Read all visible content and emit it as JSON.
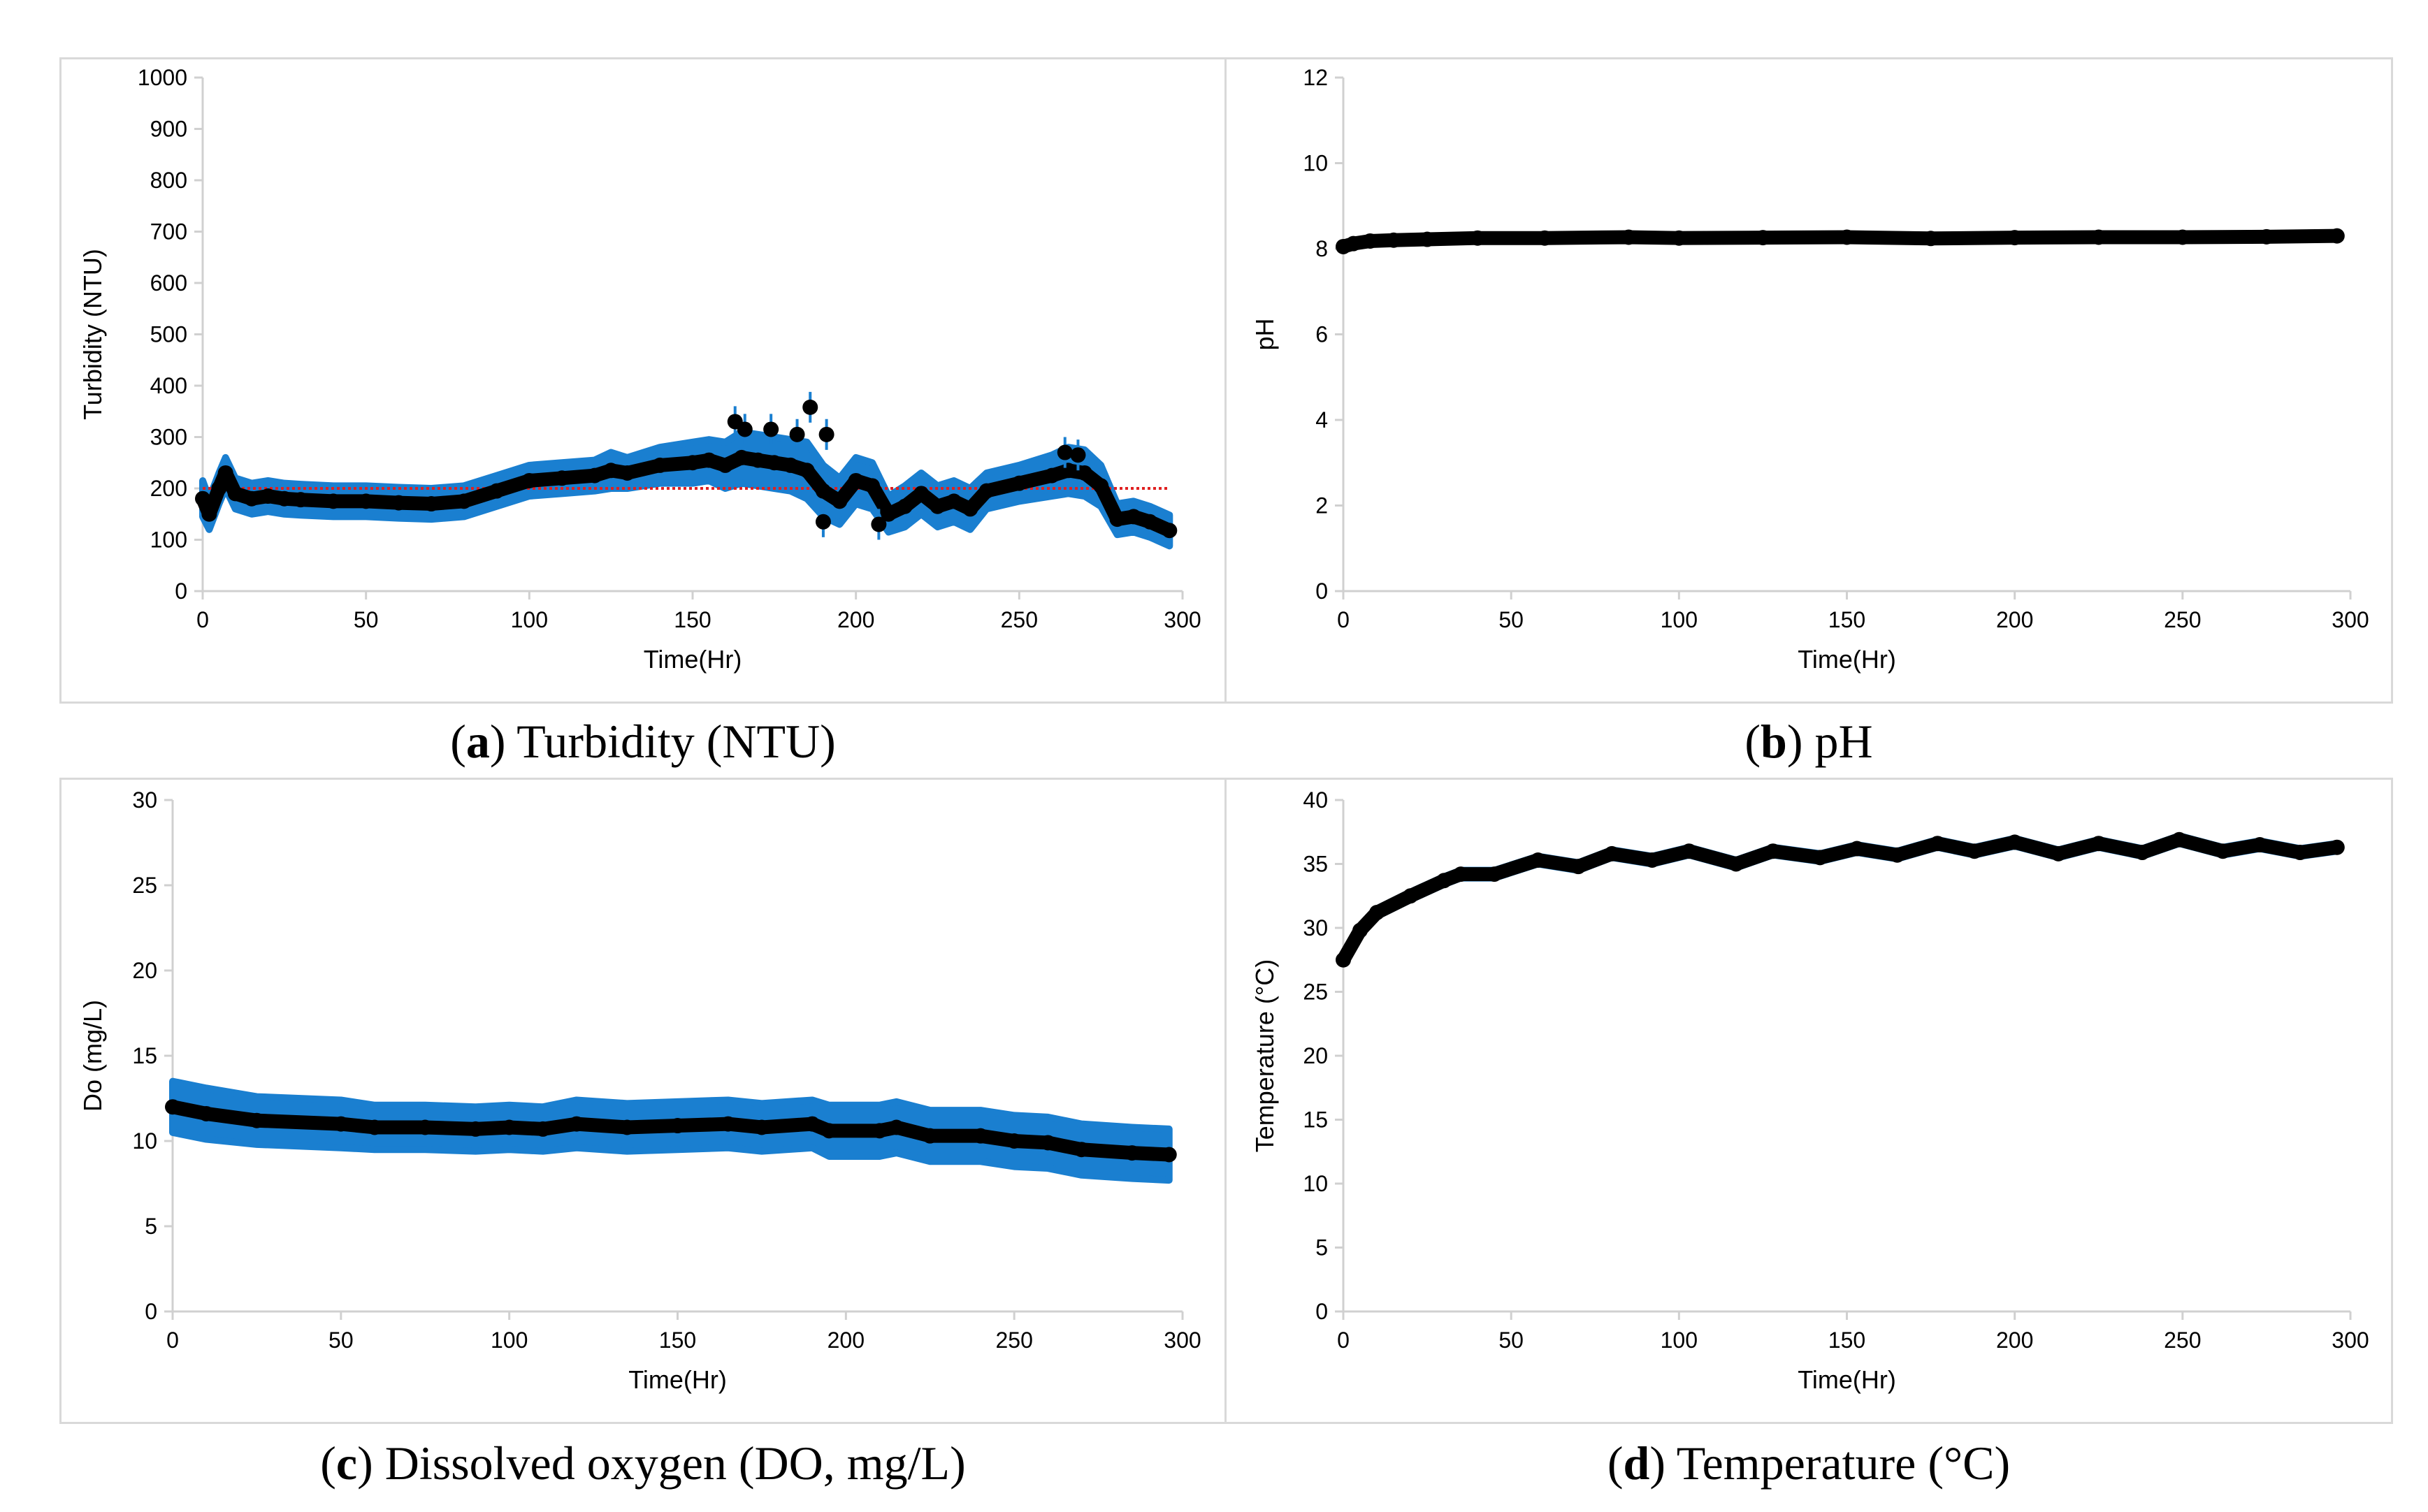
{
  "colors": {
    "mean": "#000000",
    "error": "#1a7fd0",
    "threshold": "#e02020",
    "axis": "#d0d0d0"
  },
  "captions": [
    {
      "letter": "a",
      "text": "Turbidity (NTU)"
    },
    {
      "letter": "b",
      "text": "pH"
    },
    {
      "letter": "c",
      "text": "Dissolved oxygen (DO, mg/L)"
    },
    {
      "letter": "d",
      "text": "Temperature (°C)"
    }
  ],
  "chart_data": [
    {
      "id": "a",
      "type": "line",
      "xlabel": "Time(Hr)",
      "ylabel": "Turbidity (NTU)",
      "xlim": [
        0,
        300
      ],
      "ylim": [
        0,
        1000
      ],
      "xticks": [
        0,
        50,
        100,
        150,
        200,
        250,
        300
      ],
      "yticks": [
        0,
        100,
        200,
        300,
        400,
        500,
        600,
        700,
        800,
        900,
        1000
      ],
      "threshold": 200,
      "grid": false,
      "x": [
        0,
        2,
        5,
        7,
        10,
        15,
        20,
        25,
        30,
        40,
        50,
        60,
        70,
        80,
        90,
        100,
        110,
        120,
        125,
        130,
        140,
        150,
        155,
        160,
        165,
        170,
        175,
        180,
        185,
        190,
        195,
        200,
        205,
        210,
        215,
        220,
        225,
        230,
        235,
        240,
        250,
        260,
        265,
        270,
        275,
        280,
        285,
        290,
        296
      ],
      "y": [
        180,
        150,
        200,
        230,
        190,
        180,
        185,
        180,
        178,
        175,
        175,
        172,
        170,
        175,
        195,
        215,
        220,
        225,
        235,
        230,
        245,
        250,
        255,
        245,
        260,
        255,
        250,
        245,
        235,
        195,
        175,
        215,
        205,
        150,
        165,
        190,
        165,
        175,
        160,
        195,
        210,
        225,
        235,
        230,
        205,
        140,
        145,
        135,
        118
      ],
      "err": [
        35,
        30,
        30,
        30,
        30,
        30,
        30,
        30,
        30,
        30,
        30,
        30,
        30,
        30,
        30,
        30,
        30,
        30,
        35,
        30,
        35,
        40,
        40,
        45,
        50,
        50,
        50,
        50,
        55,
        50,
        45,
        45,
        45,
        35,
        40,
        40,
        40,
        40,
        40,
        35,
        35,
        40,
        45,
        45,
        40,
        30,
        30,
        30,
        30
      ],
      "outliers": [
        [
          163,
          330
        ],
        [
          166,
          315
        ],
        [
          174,
          315
        ],
        [
          182,
          305
        ],
        [
          186,
          358
        ],
        [
          191,
          305
        ],
        [
          190,
          135
        ],
        [
          207,
          130
        ],
        [
          264,
          270
        ],
        [
          268,
          265
        ]
      ]
    },
    {
      "id": "b",
      "type": "line",
      "xlabel": "Time(Hr)",
      "ylabel": "pH",
      "xlim": [
        0,
        300
      ],
      "ylim": [
        0,
        12
      ],
      "xticks": [
        0,
        50,
        100,
        150,
        200,
        250,
        300
      ],
      "yticks": [
        0,
        2,
        4,
        6,
        8,
        10,
        12
      ],
      "grid": false,
      "x": [
        0,
        3,
        8,
        15,
        25,
        40,
        60,
        85,
        100,
        125,
        150,
        175,
        200,
        225,
        250,
        275,
        296
      ],
      "y": [
        8.05,
        8.12,
        8.18,
        8.2,
        8.22,
        8.25,
        8.25,
        8.27,
        8.25,
        8.26,
        8.27,
        8.24,
        8.26,
        8.27,
        8.27,
        8.28,
        8.3
      ],
      "err": [
        0.02,
        0.02,
        0.02,
        0.02,
        0.02,
        0.02,
        0.02,
        0.02,
        0.02,
        0.02,
        0.02,
        0.02,
        0.02,
        0.02,
        0.02,
        0.02,
        0.02
      ]
    },
    {
      "id": "c",
      "type": "line",
      "xlabel": "Time(Hr)",
      "ylabel": "Do (mg/L)",
      "xlim": [
        0,
        300
      ],
      "ylim": [
        0,
        30
      ],
      "xticks": [
        0,
        50,
        100,
        150,
        200,
        250,
        300
      ],
      "yticks": [
        0,
        5,
        10,
        15,
        20,
        25,
        30
      ],
      "grid": false,
      "x": [
        0,
        10,
        25,
        50,
        60,
        75,
        90,
        100,
        110,
        120,
        135,
        150,
        165,
        175,
        190,
        195,
        210,
        215,
        225,
        240,
        250,
        260,
        270,
        285,
        296
      ],
      "y": [
        12,
        11.6,
        11.2,
        11.0,
        10.8,
        10.8,
        10.7,
        10.8,
        10.7,
        11.0,
        10.8,
        10.9,
        11.0,
        10.8,
        11.0,
        10.6,
        10.6,
        10.8,
        10.3,
        10.3,
        10.0,
        9.9,
        9.5,
        9.3,
        9.2
      ],
      "err": [
        1.5,
        1.5,
        1.4,
        1.4,
        1.3,
        1.3,
        1.3,
        1.3,
        1.3,
        1.4,
        1.4,
        1.4,
        1.4,
        1.4,
        1.4,
        1.5,
        1.5,
        1.5,
        1.5,
        1.5,
        1.5,
        1.5,
        1.5,
        1.5,
        1.5
      ]
    },
    {
      "id": "d",
      "type": "line",
      "xlabel": "Time(Hr)",
      "ylabel": "Temperature (°C)",
      "xlim": [
        0,
        300
      ],
      "ylim": [
        0,
        40
      ],
      "xticks": [
        0,
        50,
        100,
        150,
        200,
        250,
        300
      ],
      "yticks": [
        0,
        5,
        10,
        15,
        20,
        25,
        30,
        35,
        40
      ],
      "grid": false,
      "x": [
        0,
        5,
        10,
        20,
        30,
        35,
        45,
        58,
        70,
        80,
        92,
        103,
        117,
        128,
        142,
        153,
        165,
        177,
        188,
        200,
        213,
        225,
        238,
        249,
        262,
        273,
        285,
        296
      ],
      "y": [
        27.5,
        29.8,
        31.2,
        32.5,
        33.7,
        34.2,
        34.2,
        35.3,
        34.8,
        35.8,
        35.3,
        36.0,
        35.0,
        36.0,
        35.5,
        36.2,
        35.7,
        36.6,
        36.0,
        36.7,
        35.8,
        36.6,
        35.9,
        36.9,
        36.0,
        36.5,
        35.9,
        36.3
      ],
      "err": [
        0.3,
        0.3,
        0.3,
        0.3,
        0.3,
        0.3,
        0.3,
        0.3,
        0.3,
        0.3,
        0.3,
        0.3,
        0.3,
        0.3,
        0.3,
        0.3,
        0.3,
        0.3,
        0.3,
        0.3,
        0.3,
        0.3,
        0.3,
        0.3,
        0.3,
        0.3,
        0.3,
        0.3
      ]
    }
  ]
}
